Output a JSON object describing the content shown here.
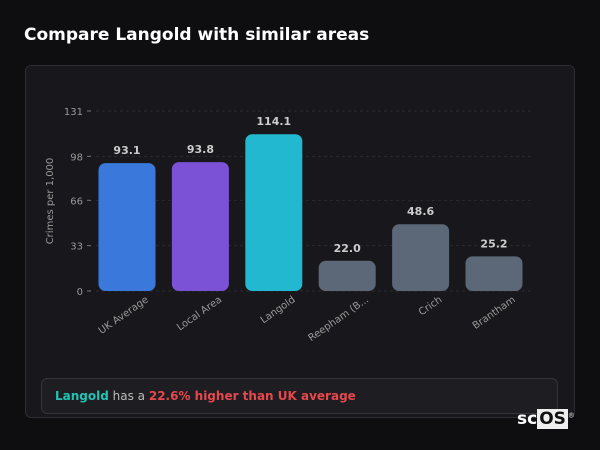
{
  "title": "Compare Langold with similar areas",
  "chart_data": {
    "type": "bar",
    "categories": [
      "UK Average",
      "Local Area",
      "Langold",
      "Reepham (B...",
      "Crich",
      "Brantham"
    ],
    "values": [
      93.1,
      93.8,
      114.1,
      22.0,
      48.6,
      25.2
    ],
    "value_labels": [
      "93.1",
      "93.8",
      "114.1",
      "22.0",
      "48.6",
      "25.2"
    ],
    "colors": [
      "#3a78dc",
      "#7b52d6",
      "#22b8cf",
      "#5c6778",
      "#5c6778",
      "#5c6778"
    ],
    "ylabel": "Crimes per 1,000",
    "xlabel": "",
    "ylim": [
      0,
      131
    ],
    "yticks": [
      0,
      33,
      66,
      98,
      131
    ],
    "grid": true
  },
  "footer": {
    "place": "Langold",
    "middle": " has a ",
    "highlight": "22.6% higher than UK average"
  },
  "logo": {
    "text": "scOS"
  }
}
